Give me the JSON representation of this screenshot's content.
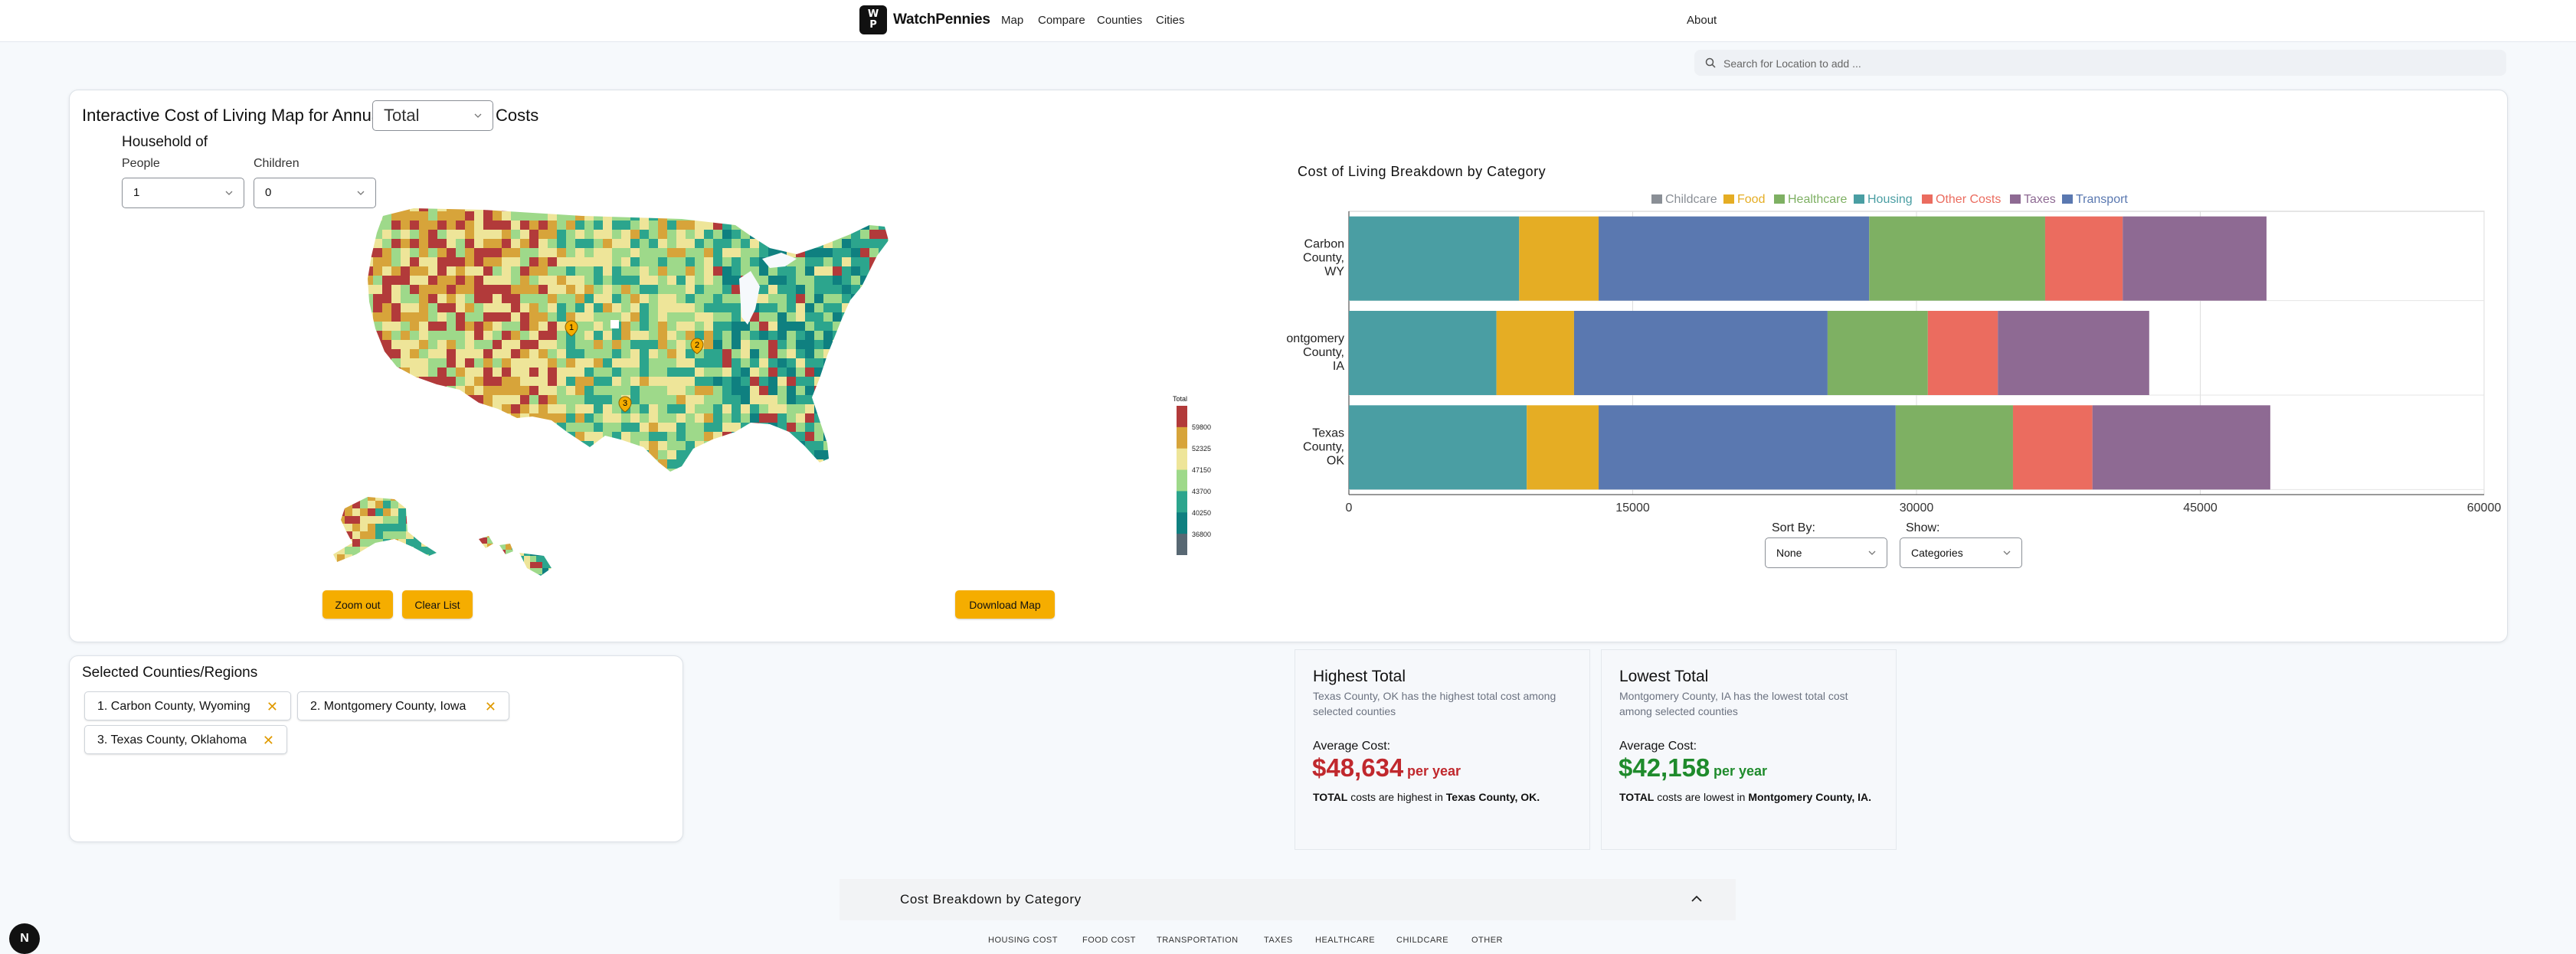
{
  "nav": {
    "logo_top": "W",
    "logo_bottom": "P",
    "brand": "WatchPennies",
    "links": [
      "Map",
      "Compare",
      "Counties",
      "Cities"
    ],
    "about": "About"
  },
  "search": {
    "placeholder": "Search for Location to add ..."
  },
  "controls": {
    "headline_prefix": "Interactive Cost of Living Map for Annual",
    "metric_value": "Total",
    "headline_suffix": "Costs",
    "household_title": "Household of",
    "people_label": "People",
    "people_value": "1",
    "children_label": "Children",
    "children_value": "0"
  },
  "map": {
    "markers": [
      "1",
      "2",
      "3"
    ],
    "legend_title": "Total",
    "legend_ticks": [
      "59800",
      "52325",
      "47150",
      "43700",
      "40250",
      "36800"
    ],
    "legend_colors": [
      "#b23a3a",
      "#d7a43a",
      "#eee599",
      "#9ed98a",
      "#2ca58d",
      "#0f8080",
      "#586873"
    ],
    "zoom_out": "Zoom out",
    "clear_list": "Clear List",
    "download": "Download Map"
  },
  "chart_data": {
    "type": "bar",
    "orientation": "horizontal",
    "stacked": true,
    "title": "Cost of Living Breakdown by Category",
    "categories": [
      "Carbon County, WY",
      "Montgomery County, IA",
      "Texas County, OK"
    ],
    "category_lines": [
      [
        "Carbon",
        "County,",
        "WY"
      ],
      [
        "Montgomery",
        "County,",
        "IA"
      ],
      [
        "Texas",
        "County,",
        "OK"
      ]
    ],
    "series": [
      {
        "name": "Childcare",
        "color": "#8a8f96",
        "values": [
          0,
          0,
          0
        ]
      },
      {
        "name": "Food",
        "color": "#e5ad24",
        "values": [
          4200,
          4100,
          3800
        ]
      },
      {
        "name": "Healthcare",
        "color": "#7eb063",
        "values": [
          9300,
          5300,
          6200
        ]
      },
      {
        "name": "Housing",
        "color": "#4a9ea3",
        "values": [
          9000,
          7800,
          9400
        ]
      },
      {
        "name": "Other Costs",
        "color": "#eb6c5f",
        "values": [
          4100,
          3700,
          4200
        ]
      },
      {
        "name": "Taxes",
        "color": "#8e6a93",
        "values": [
          7600,
          8000,
          9400
        ]
      },
      {
        "name": "Transport",
        "color": "#5a78b0",
        "values": [
          14300,
          13400,
          15700
        ]
      }
    ],
    "stack_order": [
      "Housing",
      "Food",
      "Transport",
      "Healthcare",
      "Other Costs",
      "Taxes"
    ],
    "xlim": [
      0,
      60000
    ],
    "xticks": [
      "0",
      "15000",
      "30000",
      "45000",
      "60000"
    ],
    "legend_position": "top"
  },
  "chart_controls": {
    "sort_label": "Sort By:",
    "sort_value": "None",
    "show_label": "Show:",
    "show_value": "Categories"
  },
  "selected": {
    "title": "Selected Counties/Regions",
    "chips": [
      "1. Carbon County, Wyoming",
      "2. Montgomery County, Iowa",
      "3. Texas County, Oklahoma"
    ]
  },
  "highest": {
    "title": "Highest Total",
    "desc": "Texas County, OK has the highest total cost among selected counties",
    "avg_label": "Average Cost:",
    "value": "$48,634",
    "per": "per year",
    "note_bold": "TOTAL",
    "note_mid": "costs are highest in",
    "note_place": "Texas County, OK.",
    "color": "#c0282d"
  },
  "lowest": {
    "title": "Lowest Total",
    "desc": "Montgomery County, IA has the lowest total cost among selected counties",
    "avg_label": "Average Cost:",
    "value": "$42,158",
    "per": "per year",
    "note_bold": "TOTAL",
    "note_mid": "costs are lowest in",
    "note_place": "Montgomery County, IA.",
    "color": "#1f8b2c"
  },
  "breakdown": {
    "title": "Cost Breakdown by Category",
    "tabs": [
      "HOUSING COST",
      "FOOD COST",
      "TRANSPORTATION",
      "TAXES",
      "HEALTHCARE",
      "CHILDCARE",
      "OTHER"
    ]
  },
  "fab": "N"
}
